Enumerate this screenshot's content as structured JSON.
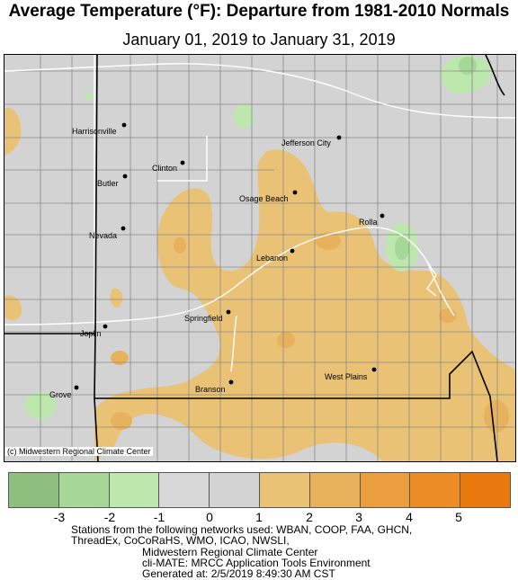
{
  "title": "Average Temperature (°F): Departure from 1981-2010 Normals",
  "subtitle": "January 01, 2019 to January 31, 2019",
  "credit": "(c) Midwestern Regional Climate Center",
  "cities": [
    {
      "name": "Harrisonville"
    },
    {
      "name": "Clinton"
    },
    {
      "name": "Butler"
    },
    {
      "name": "Jefferson City"
    },
    {
      "name": "Osage Beach"
    },
    {
      "name": "Nevada"
    },
    {
      "name": "Rolla"
    },
    {
      "name": "Lebanon"
    },
    {
      "name": "Springfield"
    },
    {
      "name": "Joplin"
    },
    {
      "name": "West Plains"
    },
    {
      "name": "Branson"
    },
    {
      "name": "Grove"
    }
  ],
  "legend": {
    "colors": [
      "#8fbf7e",
      "#a6d796",
      "#bde8ad",
      "#d8d8d8",
      "#d3d3d3",
      "#e9c276",
      "#e8b25c",
      "#eb9f3c",
      "#ec8c24",
      "#e9790e"
    ],
    "ticks": [
      "-3",
      "-2",
      "-1",
      "0",
      "1",
      "2",
      "3",
      "4",
      "5"
    ]
  },
  "footer": {
    "line1": "Stations from the following networks used: WBAN, COOP, FAA, GHCN,",
    "line2": "ThreadEx, CoCoRaHS, WMO, ICAO, NWSLI,",
    "line3": "Midwestern Regional Climate Center",
    "line4": "cli-MATE: MRCC Application Tools Environment",
    "line5": "Generated at: 2/5/2019 8:49:30 AM CST"
  }
}
